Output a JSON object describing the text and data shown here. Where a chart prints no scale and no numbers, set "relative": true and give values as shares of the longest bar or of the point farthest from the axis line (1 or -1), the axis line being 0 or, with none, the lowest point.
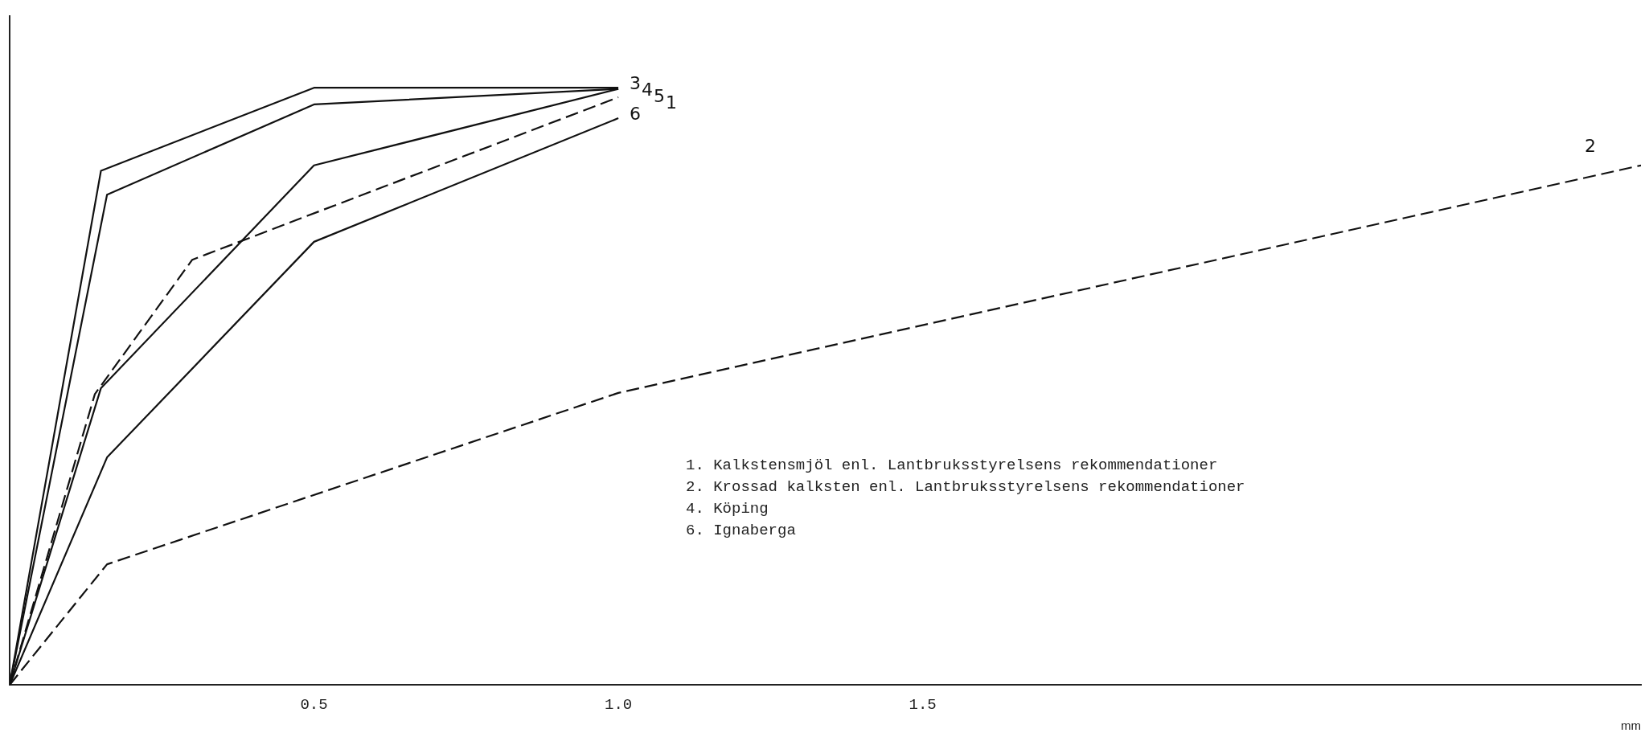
{
  "chart_data": {
    "type": "line",
    "relative": true,
    "xlabel": "mm",
    "xlim": [
      0,
      2.68
    ],
    "xticks": [
      0.5,
      {
        "value": 1,
        "label": "1.0"
      },
      1.5
    ],
    "grid": false,
    "legend": false,
    "marker": "none",
    "line_style": "solid",
    "series": [
      {
        "name": "3",
        "color": "#111111",
        "x": [
          0,
          0.15,
          0.5,
          1.0
        ],
        "values": [
          0,
          0.861,
          1.0,
          1.0
        ]
      },
      {
        "name": "4",
        "color": "#111111",
        "x": [
          0,
          0.16,
          0.5,
          1.0
        ],
        "values": [
          0,
          0.821,
          0.972,
          0.998
        ]
      },
      {
        "name": "5",
        "color": "#111111",
        "x": [
          0,
          0.15,
          0.5,
          1.0
        ],
        "values": [
          0,
          0.497,
          0.87,
          0.998
        ]
      },
      {
        "name": "1",
        "color": "#111111",
        "line_style": "dashed",
        "x": [
          0,
          0.14,
          0.3,
          1.0
        ],
        "values": [
          0,
          0.487,
          0.712,
          0.984
        ]
      },
      {
        "name": "6",
        "color": "#111111",
        "x": [
          0,
          0.16,
          0.5,
          1.0
        ],
        "values": [
          0,
          0.381,
          0.742,
          0.949
        ]
      },
      {
        "name": "2",
        "color": "#111111",
        "line_style": "dashed",
        "x": [
          0,
          0.16,
          1.0,
          2.68
        ],
        "values": [
          0,
          0.202,
          0.489,
          0.87
        ]
      }
    ],
    "annotations": [
      "1. Kalkstensmjöl enl. Lantbruksstyrelsens rekommendationer",
      "2. Krossad kalksten enl. Lantbruksstyrelsens rekommendationer",
      "4. Köping",
      "6. Ignaberga"
    ]
  }
}
